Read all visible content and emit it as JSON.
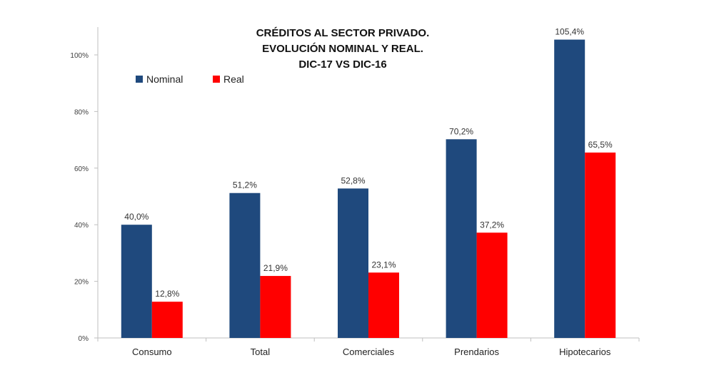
{
  "chart_data": {
    "type": "bar",
    "title_lines": [
      "CRÉDITOS AL SECTOR PRIVADO.",
      "EVOLUCIÓN NOMINAL Y REAL.",
      "DIC-17 VS DIC-16"
    ],
    "categories": [
      "Consumo",
      "Total",
      "Comerciales",
      "Prendarios",
      "Hipotecarios"
    ],
    "series": [
      {
        "name": "Nominal",
        "color": "#1F497D",
        "values": [
          40.0,
          51.2,
          52.8,
          70.2,
          105.4
        ],
        "labels": [
          "40,0%",
          "51,2%",
          "52,8%",
          "70,2%",
          "105,4%"
        ]
      },
      {
        "name": "Real",
        "color": "#FF0000",
        "values": [
          12.8,
          21.9,
          23.1,
          37.2,
          65.5
        ],
        "labels": [
          "12,8%",
          "21,9%",
          "23,1%",
          "37,2%",
          "65,5%"
        ]
      }
    ],
    "xlabel": "",
    "ylabel": "",
    "ylim": [
      0,
      110
    ],
    "yticks": [
      0,
      20,
      40,
      60,
      80,
      100
    ],
    "ytick_labels": [
      "0%",
      "20%",
      "40%",
      "60%",
      "80%",
      "100%"
    ],
    "grid": false,
    "legend_position": "top-left"
  }
}
